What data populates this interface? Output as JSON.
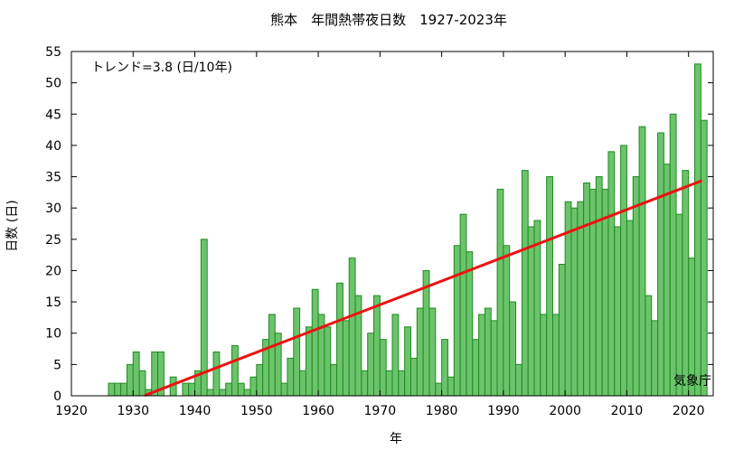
{
  "chart_data": {
    "type": "bar",
    "title": "熊本　年間熱帯夜日数　1927-2023年",
    "xlabel": "年",
    "ylabel": "日数 (日)",
    "trend_label": "トレンド=3.8 (日/10年)",
    "credit": "気象庁",
    "xlim": [
      1920,
      2024
    ],
    "ylim": [
      0,
      55
    ],
    "xticks": [
      1920,
      1930,
      1940,
      1950,
      1960,
      1970,
      1980,
      1990,
      2000,
      2010,
      2020
    ],
    "yticks": [
      0,
      5,
      10,
      15,
      20,
      25,
      30,
      35,
      40,
      45,
      50,
      55
    ],
    "grid": false,
    "colors": {
      "bar_fill": "#6cc36c",
      "bar_edge": "#1e8c1e",
      "trend": "#ee1111"
    },
    "series": [
      {
        "x": [
          1927,
          1928,
          1929,
          1930,
          1931,
          1932,
          1933,
          1934,
          1935,
          1936,
          1937,
          1938,
          1939,
          1940,
          1941,
          1942,
          1943,
          1944,
          1945,
          1946,
          1947,
          1948,
          1949,
          1950,
          1951,
          1952,
          1953,
          1954,
          1955,
          1956,
          1957,
          1958,
          1959,
          1960,
          1961,
          1962,
          1963,
          1964,
          1965,
          1966,
          1967,
          1968,
          1969,
          1970,
          1971,
          1972,
          1973,
          1974,
          1975,
          1976,
          1977,
          1978,
          1979,
          1980,
          1981,
          1982,
          1983,
          1984,
          1985,
          1986,
          1987,
          1988,
          1989,
          1990,
          1991,
          1992,
          1993,
          1994,
          1995,
          1996,
          1997,
          1998,
          1999,
          2000,
          2001,
          2002,
          2003,
          2004,
          2005,
          2006,
          2007,
          2008,
          2009,
          2010,
          2011,
          2012,
          2013,
          2014,
          2015,
          2016,
          2017,
          2018,
          2019,
          2020,
          2021,
          2022,
          2023
        ],
        "values": [
          2,
          2,
          2,
          5,
          7,
          4,
          1,
          7,
          7,
          0,
          3,
          0,
          2,
          2,
          4,
          25,
          1,
          7,
          1,
          2,
          8,
          2,
          1,
          3,
          5,
          9,
          13,
          10,
          2,
          6,
          14,
          4,
          11,
          17,
          13,
          11,
          5,
          18,
          12,
          22,
          16,
          4,
          10,
          16,
          9,
          4,
          13,
          4,
          11,
          6,
          14,
          20,
          14,
          2,
          9,
          3,
          24,
          29,
          23,
          9,
          13,
          14,
          12,
          33,
          24,
          15,
          5,
          36,
          27,
          28,
          13,
          35,
          13,
          21,
          31,
          30,
          31,
          34,
          33,
          35,
          33,
          39,
          27,
          40,
          28,
          35,
          43,
          16,
          12,
          42,
          37,
          45,
          29,
          36,
          22,
          53,
          44
        ]
      }
    ],
    "trend": {
      "x": [
        1932,
        2022
      ],
      "y": [
        0.1,
        34.3
      ]
    }
  }
}
